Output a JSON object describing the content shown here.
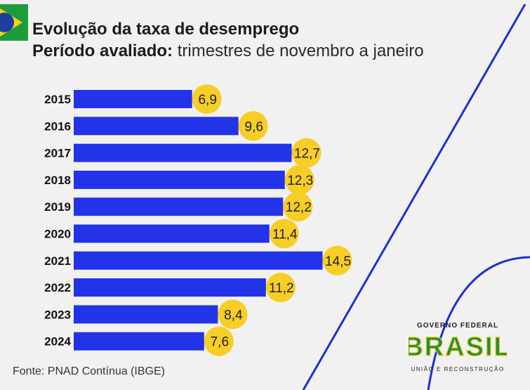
{
  "header": {
    "line1": "Evolução da taxa de desemprego",
    "line2_bold": "Período avaliado:",
    "line2_rest": " trimestres de novembro a janeiro"
  },
  "source": "Fonte: PNAD Contínua (IBGE)",
  "gov_logo": {
    "top": "GOVERNO FEDERAL",
    "brand": "BRASIL",
    "bottom": "UNIÃO E RECONSTRUÇÃO"
  },
  "colors": {
    "bar": "#2233e8",
    "bubble": "#f7cd27",
    "line": "#1d2fd4"
  },
  "chart_data": {
    "type": "bar",
    "orientation": "horizontal",
    "categories": [
      "2015",
      "2016",
      "2017",
      "2018",
      "2019",
      "2020",
      "2021",
      "2022",
      "2023",
      "2024"
    ],
    "values": [
      6.9,
      9.6,
      12.7,
      12.3,
      12.2,
      11.4,
      14.5,
      11.2,
      8.4,
      7.6
    ],
    "value_labels": [
      "6,9",
      "9,6",
      "12,7",
      "12,3",
      "12,2",
      "11,4",
      "14,5",
      "11,2",
      "8,4",
      "7,6"
    ]
  }
}
